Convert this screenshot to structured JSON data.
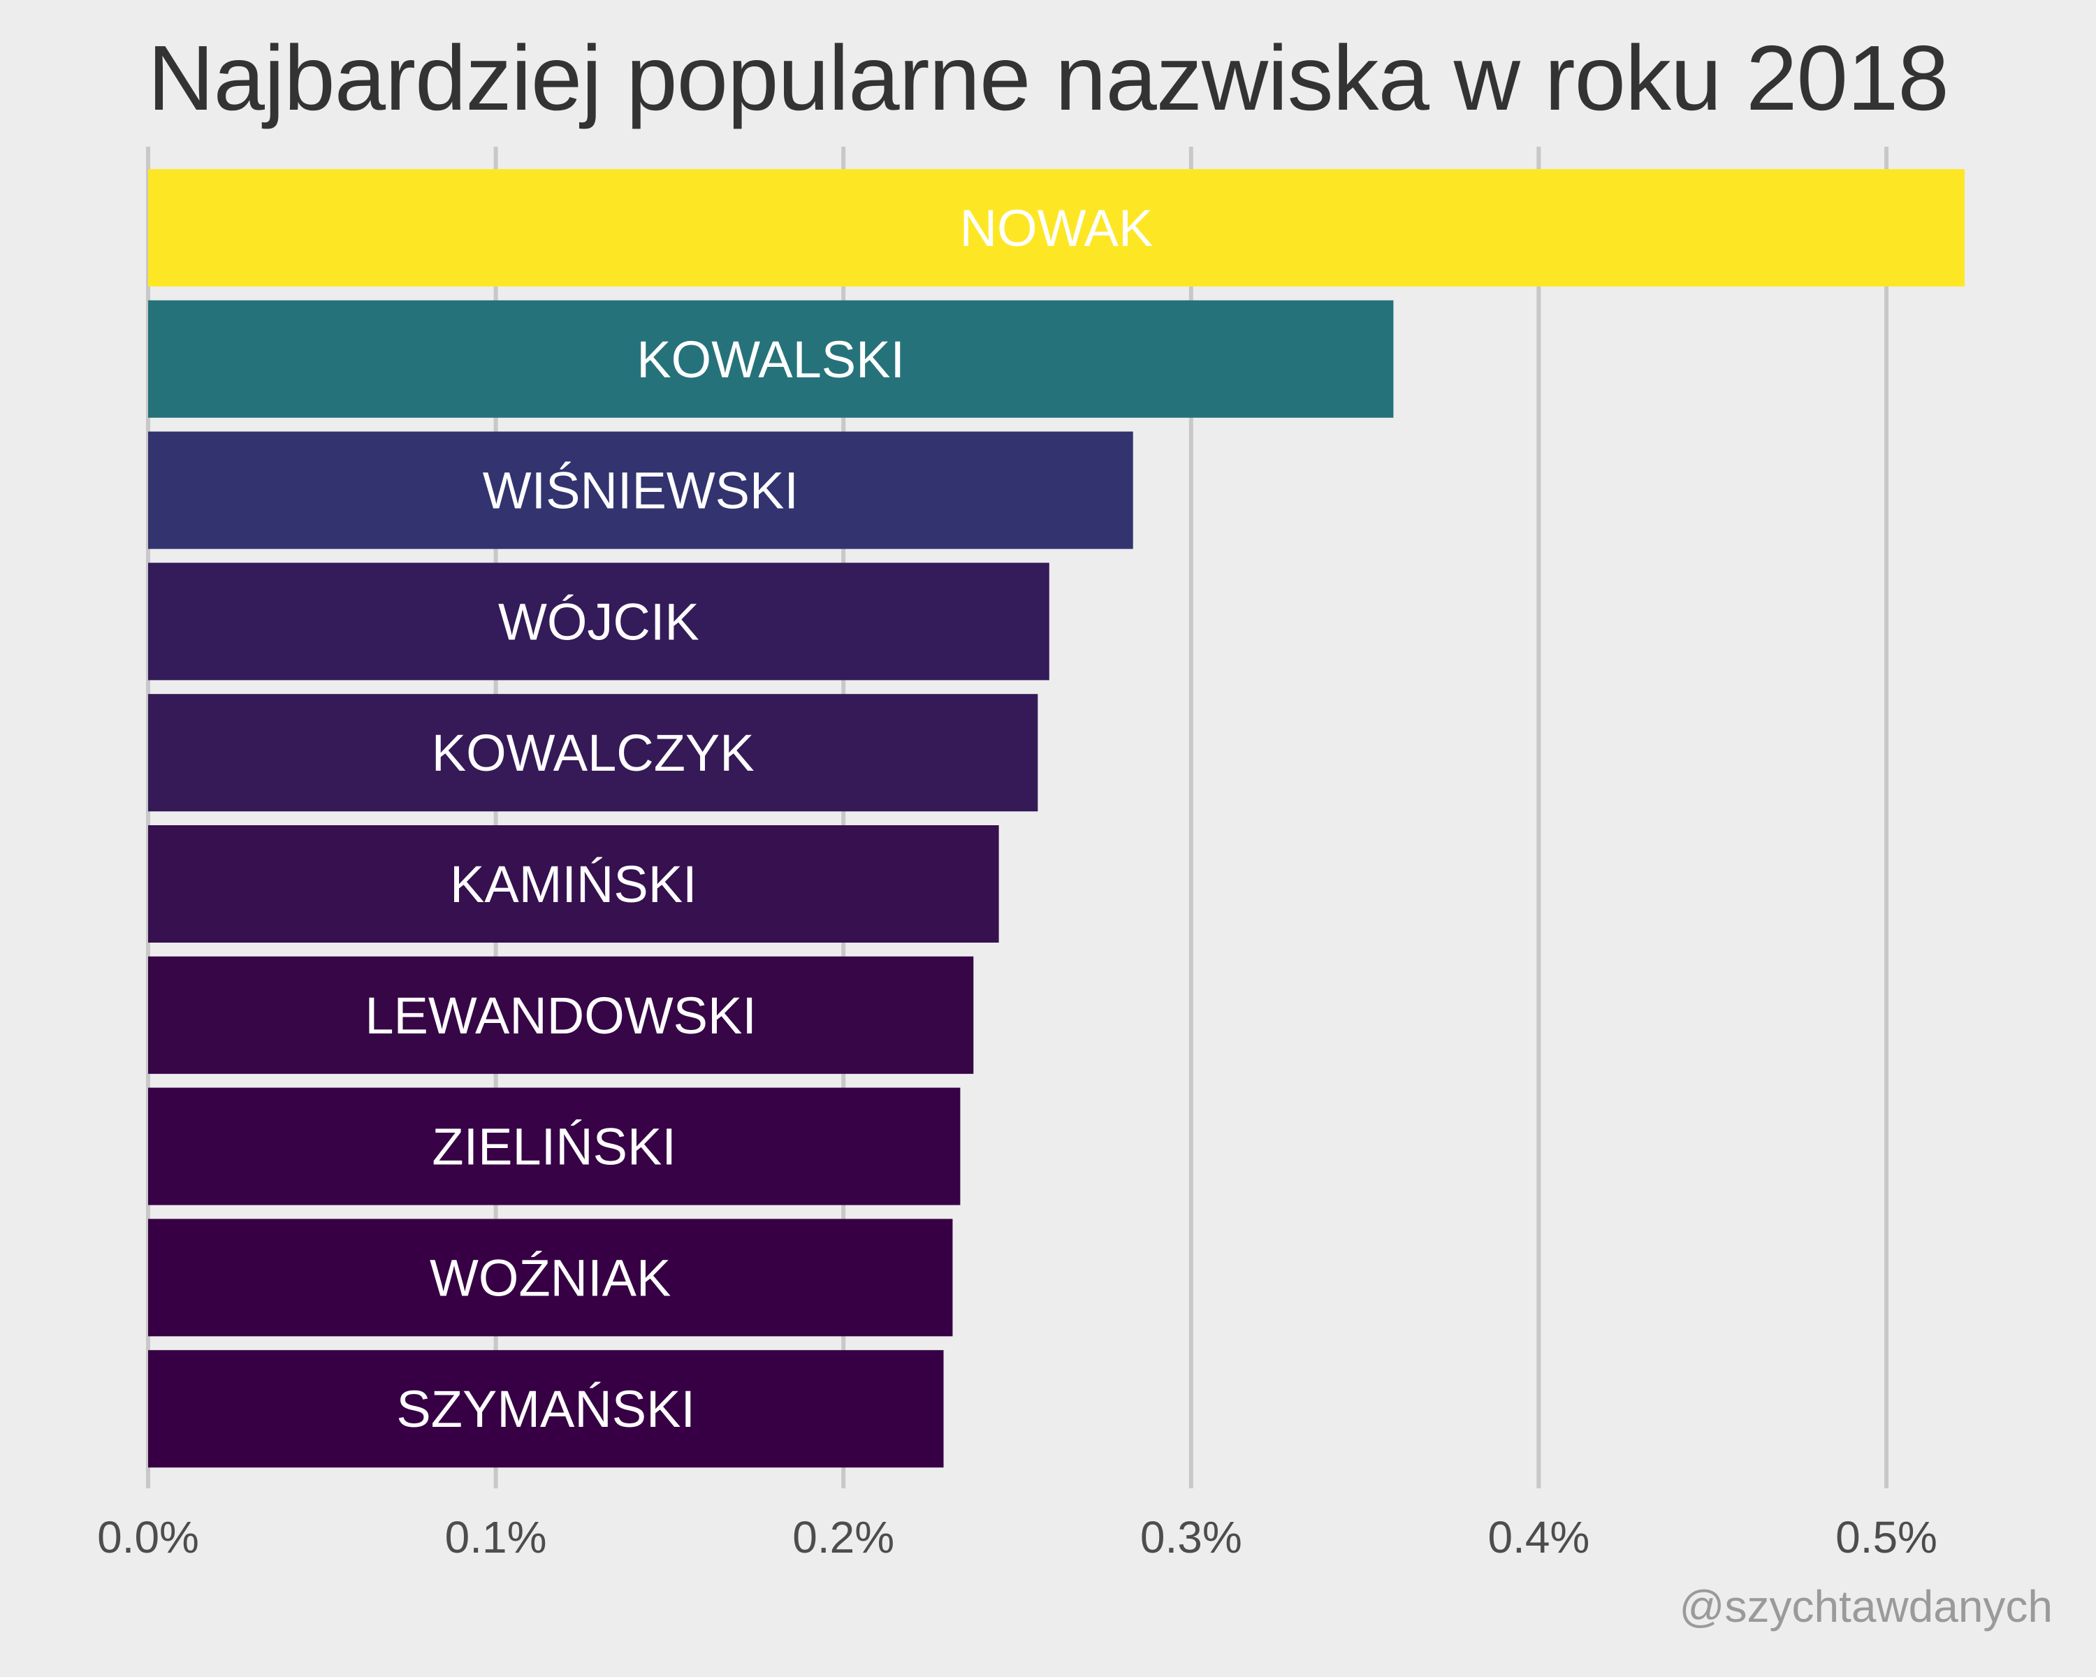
{
  "chart_data": {
    "type": "bar",
    "orientation": "horizontal",
    "title": "Najbardziej popularne nazwiska w roku 2018",
    "xlabel": "",
    "ylabel": "",
    "categories": [
      "NOWAK",
      "KOWALSKI",
      "WIŚNIEWSKI",
      "WÓJCIK",
      "KOWALCZYK",
      "KAMIŃSKI",
      "LEWANDOWSKI",
      "ZIELIŃSKI",
      "WOŹNIAK",
      "SZYMAŃSKI"
    ],
    "values": [
      0.5225,
      0.3582,
      0.2833,
      0.2592,
      0.2559,
      0.2447,
      0.2374,
      0.2336,
      0.2314,
      0.2288
    ],
    "colors": [
      "#fde725",
      "#26727b",
      "#32336f",
      "#341b59",
      "#351a57",
      "#36104f",
      "#370647",
      "#370246",
      "#370044",
      "#370044"
    ],
    "xlim": [
      0,
      0.55
    ],
    "x_ticks": [
      0.0,
      0.1,
      0.2,
      0.3,
      0.4,
      0.5
    ],
    "x_tick_labels": [
      "0.0%",
      "0.1%",
      "0.2%",
      "0.3%",
      "0.4%",
      "0.5%"
    ],
    "grid": "vertical",
    "legend": "none"
  },
  "credit": "@szychtawdanych"
}
